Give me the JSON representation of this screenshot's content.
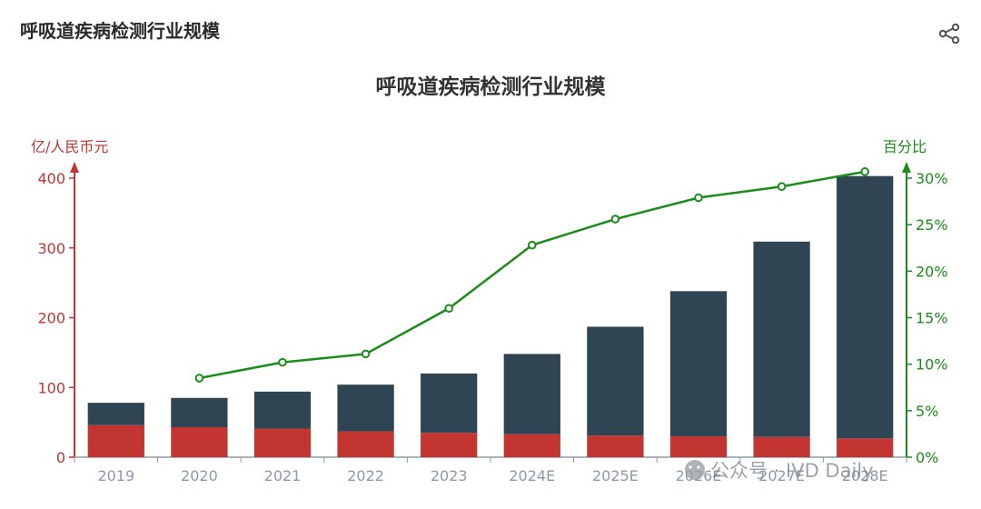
{
  "header": {
    "title": "呼吸道疾病检测行业规模"
  },
  "toolbar": {
    "share_icon": "share-icon"
  },
  "watermark": {
    "text": "公众号 · IVD Daily"
  },
  "chart_data": {
    "type": "bar",
    "title": "呼吸道疾病检测行业规模",
    "categories": [
      "2019",
      "2020",
      "2021",
      "2022",
      "2023",
      "2024E",
      "2025E",
      "2026E",
      "2027E",
      "2028E"
    ],
    "ylabel": "亿/人民币元",
    "ylabel_right": "百分比",
    "ylim": [
      0,
      400
    ],
    "yticks": [
      0,
      100,
      200,
      300,
      400
    ],
    "ylim_right": [
      0,
      0.3
    ],
    "yticks_right": [
      "0%",
      "5%",
      "10%",
      "15%",
      "20%",
      "25%",
      "30%"
    ],
    "yticks_right_values": [
      0,
      0.05,
      0.1,
      0.15,
      0.2,
      0.25,
      0.3
    ],
    "stacked": true,
    "series": [
      {
        "values": [
          46,
          43,
          41,
          37,
          35,
          33,
          31,
          30,
          29,
          27
        ],
        "color": "#c23531",
        "axis": "left",
        "kind": "bar"
      },
      {
        "values": [
          32,
          42,
          53,
          67,
          85,
          115,
          156,
          208,
          280,
          376
        ],
        "color": "#2f4554",
        "axis": "left",
        "kind": "bar"
      },
      {
        "values": [
          null,
          0.085,
          0.102,
          0.111,
          0.16,
          0.228,
          0.256,
          0.279,
          0.291,
          0.307
        ],
        "color": "#1a8c1a",
        "axis": "right",
        "kind": "line"
      }
    ],
    "grid": false,
    "colors": {
      "left_axis": "#c23531",
      "right_axis": "#1a8c1a",
      "x_axis": "#8b9aa6"
    }
  }
}
